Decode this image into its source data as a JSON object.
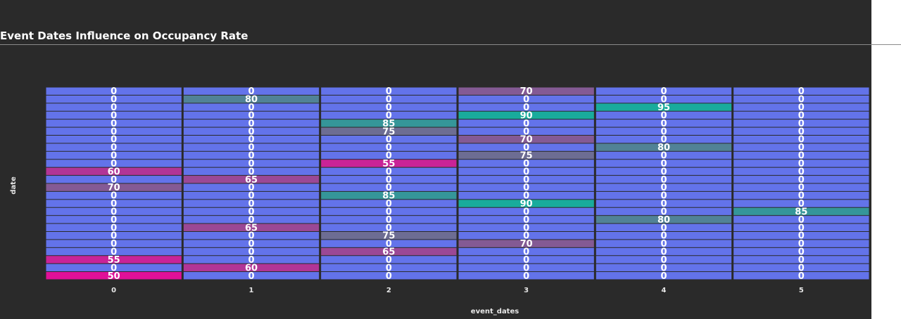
{
  "chart_data": {
    "type": "heatmap",
    "title": "Event Dates Influence on Occupancy Rate",
    "xlabel": "event_dates",
    "ylabel": "date",
    "x_categories": [
      "0",
      "1",
      "2",
      "3",
      "4",
      "5"
    ],
    "rows": 24,
    "values": [
      [
        0,
        0,
        0,
        70,
        0,
        0
      ],
      [
        0,
        80,
        0,
        0,
        0,
        0
      ],
      [
        0,
        0,
        0,
        0,
        95,
        0
      ],
      [
        0,
        0,
        0,
        90,
        0,
        0
      ],
      [
        0,
        0,
        85,
        0,
        0,
        0
      ],
      [
        0,
        0,
        75,
        0,
        0,
        0
      ],
      [
        0,
        0,
        0,
        70,
        0,
        0
      ],
      [
        0,
        0,
        0,
        0,
        80,
        0
      ],
      [
        0,
        0,
        0,
        75,
        0,
        0
      ],
      [
        0,
        0,
        55,
        0,
        0,
        0
      ],
      [
        60,
        0,
        0,
        0,
        0,
        0
      ],
      [
        0,
        65,
        0,
        0,
        0,
        0
      ],
      [
        70,
        0,
        0,
        0,
        0,
        0
      ],
      [
        0,
        0,
        85,
        0,
        0,
        0
      ],
      [
        0,
        0,
        0,
        90,
        0,
        0
      ],
      [
        0,
        0,
        0,
        0,
        0,
        85
      ],
      [
        0,
        0,
        0,
        0,
        80,
        0
      ],
      [
        0,
        65,
        0,
        0,
        0,
        0
      ],
      [
        0,
        0,
        75,
        0,
        0,
        0
      ],
      [
        0,
        0,
        0,
        70,
        0,
        0
      ],
      [
        0,
        0,
        65,
        0,
        0,
        0
      ],
      [
        55,
        0,
        0,
        0,
        0,
        0
      ],
      [
        0,
        60,
        0,
        0,
        0,
        0
      ],
      [
        50,
        0,
        0,
        0,
        0,
        0
      ]
    ],
    "colorscale": {
      "zero": "#6373ea",
      "low": "#e01098",
      "mid": "#6d6d93",
      "high": "#19ab9c"
    },
    "show_cell_labels": true,
    "grid": false
  }
}
